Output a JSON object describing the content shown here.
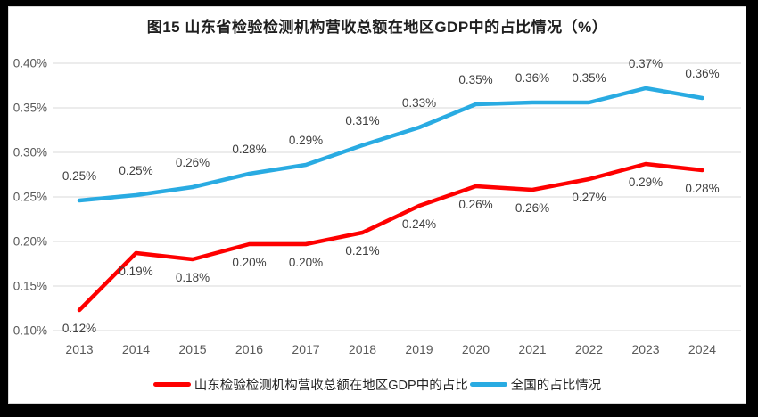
{
  "chart_data": {
    "type": "line",
    "title": "图15  山东省检验检测机构营收总额在地区GDP中的占比情况（%）",
    "categories": [
      "2013",
      "2014",
      "2015",
      "2016",
      "2017",
      "2018",
      "2019",
      "2020",
      "2021",
      "2022",
      "2023",
      "2024"
    ],
    "xlabel": "",
    "ylabel": "",
    "y_axis": {
      "min": 0.1,
      "max": 0.4,
      "step": 0.05,
      "tick_labels": [
        "0.40%",
        "0.35%",
        "0.30%",
        "0.25%",
        "0.20%",
        "0.15%",
        "0.10%"
      ]
    },
    "grid": true,
    "legend_position": "bottom",
    "series": [
      {
        "key": "shandong",
        "name": "山东检验检测机构营收总额在地区GDP中的占比",
        "color": "#fe0000",
        "values": [
          0.12,
          0.19,
          0.18,
          0.2,
          0.2,
          0.21,
          0.24,
          0.26,
          0.26,
          0.27,
          0.29,
          0.28
        ],
        "labels": [
          "0.12%",
          "0.19%",
          "0.18%",
          "0.20%",
          "0.20%",
          "0.21%",
          "0.24%",
          "0.26%",
          "0.26%",
          "0.27%",
          "0.29%",
          "0.28%"
        ],
        "plot_values": [
          0.123,
          0.187,
          0.18,
          0.197,
          0.197,
          0.21,
          0.24,
          0.262,
          0.258,
          0.27,
          0.287,
          0.28
        ],
        "label_position": "below"
      },
      {
        "key": "national",
        "name": "全国的占比情况",
        "color": "#29abe2",
        "values": [
          0.25,
          0.25,
          0.26,
          0.28,
          0.29,
          0.31,
          0.33,
          0.35,
          0.36,
          0.35,
          0.37,
          0.36
        ],
        "labels": [
          "0.25%",
          "0.25%",
          "0.26%",
          "0.28%",
          "0.29%",
          "0.31%",
          "0.33%",
          "0.35%",
          "0.36%",
          "0.35%",
          "0.37%",
          "0.36%"
        ],
        "plot_values": [
          0.246,
          0.252,
          0.261,
          0.276,
          0.286,
          0.308,
          0.328,
          0.354,
          0.356,
          0.356,
          0.372,
          0.361
        ],
        "label_position": "above"
      }
    ]
  },
  "colors": {
    "frame": "#000000",
    "chart_background": "#ffffff",
    "gridline": "#d9d9d9",
    "axis_text": "#595959",
    "data_label": "#3f3f3f",
    "title_text": "#1f1f1f"
  }
}
